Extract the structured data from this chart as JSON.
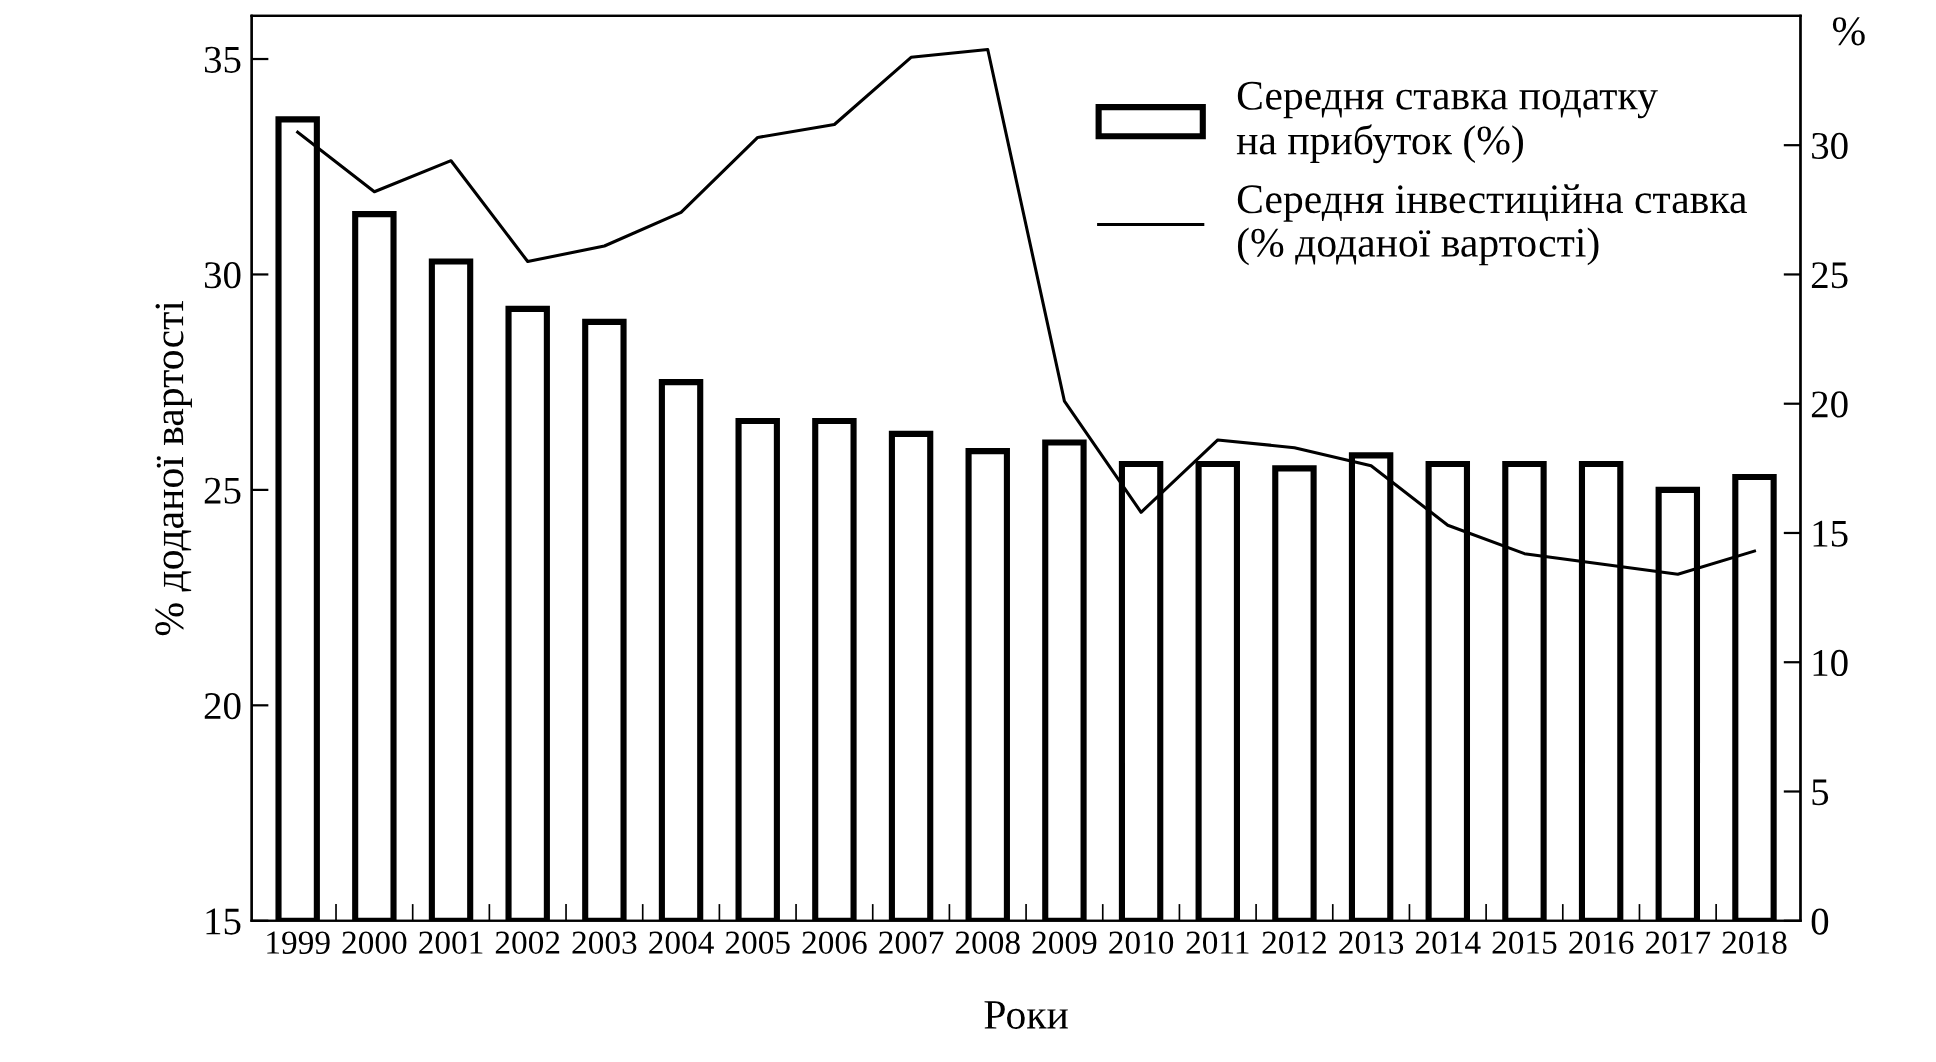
{
  "chart_data": {
    "type": "bar",
    "xlabel": "Роки",
    "ylabel": "% доданої вартості",
    "y2label": "%",
    "categories": [
      "1999",
      "2000",
      "2001",
      "2002",
      "2003",
      "2004",
      "2005",
      "2006",
      "2007",
      "2008",
      "2009",
      "2010",
      "2011",
      "2012",
      "2013",
      "2014",
      "2015",
      "2016",
      "2017",
      "2018"
    ],
    "series": [
      {
        "name": "Середня ставка податку на прибуток (%)",
        "color": "#ffffff",
        "values": [
          33.6,
          31.4,
          30.3,
          29.2,
          28.9,
          27.5,
          26.6,
          26.6,
          26.3,
          25.9,
          26.1,
          25.6,
          25.6,
          25.5,
          25.8,
          25.6,
          25.6,
          25.6,
          25.0,
          25.3
        ]
      },
      {
        "name": "Середня інвестиційна ставка (% доданої вартості)",
        "type": "line",
        "axis": "y2",
        "color": "#000000",
        "values": [
          30.5,
          28.2,
          29.4,
          25.5,
          26.1,
          27.4,
          30.3,
          30.8,
          33.4,
          33.7,
          20.1,
          15.8,
          18.6,
          18.3,
          17.6,
          15.3,
          14.2,
          13.8,
          13.4,
          14.3
        ]
      }
    ],
    "ylim": [
      15,
      36
    ],
    "yticks": [
      15,
      20,
      25,
      30,
      35
    ],
    "y2lim": [
      0,
      35
    ],
    "y2ticks": [
      0,
      5,
      10,
      15,
      20,
      25,
      30
    ],
    "grid": false,
    "legend": "top right",
    "line_style": "solid",
    "marker": "none"
  }
}
